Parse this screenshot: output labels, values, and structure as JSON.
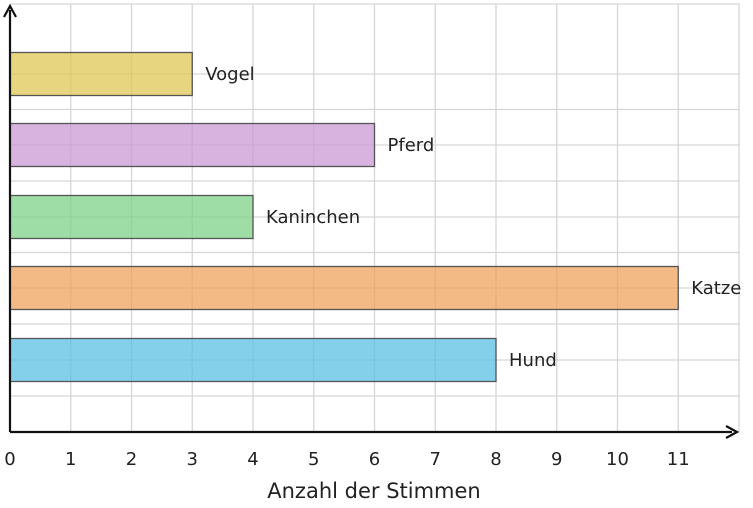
{
  "chart_data": {
    "type": "bar",
    "orientation": "horizontal",
    "categories": [
      "Hund",
      "Katze",
      "Kaninchen",
      "Pferd",
      "Vogel"
    ],
    "values": [
      8,
      11,
      4,
      6,
      3
    ],
    "colors": [
      "#5bc0e3",
      "#f0a35e",
      "#7fd18a",
      "#cc99d4",
      "#e0c755"
    ],
    "xlabel": "Anzahl der Stimmen",
    "ylabel": "",
    "title": "",
    "xlim": [
      0,
      12
    ],
    "xticks": [
      0,
      1,
      2,
      3,
      4,
      5,
      6,
      7,
      8,
      9,
      10,
      11
    ],
    "xtick_labels": [
      "0",
      "1",
      "2",
      "3",
      "4",
      "5",
      "6",
      "7",
      "8",
      "9",
      "10",
      "11"
    ],
    "grid": true,
    "bar_labels": "right of bar end"
  }
}
